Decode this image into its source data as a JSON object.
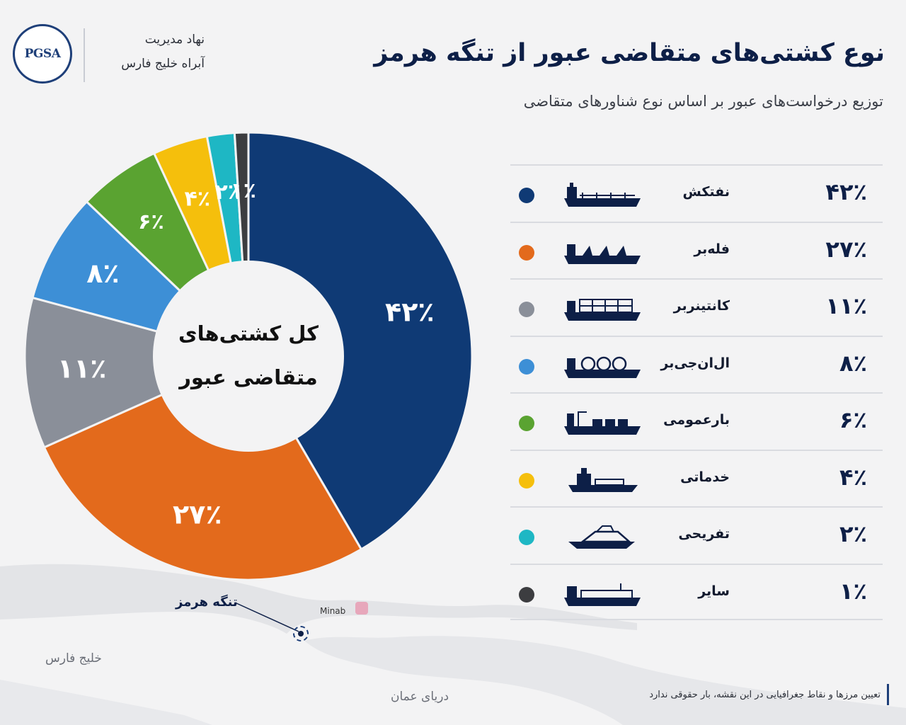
{
  "organization": {
    "logo_text": "PGSA",
    "name_line1": "نهاد مدیریت",
    "name_line2": "آبراه خلیج فارس"
  },
  "header": {
    "title": "نوع کشتی‌های متقاضی عبور از تنگه هرمز",
    "subtitle": "توزیع درخواست‌های عبور بر اساس نوع شناورهای متقاضی"
  },
  "chart_data": {
    "type": "pie",
    "center_label_line1": "کل کشتی‌های",
    "center_label_line2": "متقاضی عبور",
    "slices": [
      {
        "name": "نفتکش",
        "value": 42,
        "label": "۴۲٪",
        "color": "#0f3a75",
        "icon": "oil-tanker-icon"
      },
      {
        "name": "فله‌بر",
        "value": 27,
        "label": "۲۷٪",
        "color": "#e36a1c",
        "icon": "bulk-carrier-icon"
      },
      {
        "name": "کانتینربر",
        "value": 11,
        "label": "۱۱٪",
        "color": "#8a8f99",
        "icon": "container-ship-icon"
      },
      {
        "name": "ال‌ان‌جی‌بر",
        "value": 8,
        "label": "۸٪",
        "color": "#3d8fd6",
        "icon": "lng-carrier-icon"
      },
      {
        "name": "بارعمومی",
        "value": 6,
        "label": "۶٪",
        "color": "#5aa331",
        "icon": "general-cargo-icon"
      },
      {
        "name": "خدماتی",
        "value": 4,
        "label": "۴٪",
        "color": "#f5bf0c",
        "icon": "service-vessel-icon"
      },
      {
        "name": "تفریحی",
        "value": 2,
        "label": "۲٪",
        "color": "#1eb7c4",
        "icon": "yacht-icon"
      },
      {
        "name": "سایر",
        "value": 1,
        "label": "۱٪",
        "color": "#3c3d40",
        "icon": "other-vessel-icon"
      }
    ]
  },
  "map": {
    "strait_label": "تنگه هرمز",
    "city_label": "Minab",
    "gulf_label": "خلیج فارس",
    "sea_label": "دریای عمان"
  },
  "footer": {
    "disclaimer": "تعیین مرزها و نقاط جغرافیایی در این نقشه، بار حقوقی ندارد"
  }
}
